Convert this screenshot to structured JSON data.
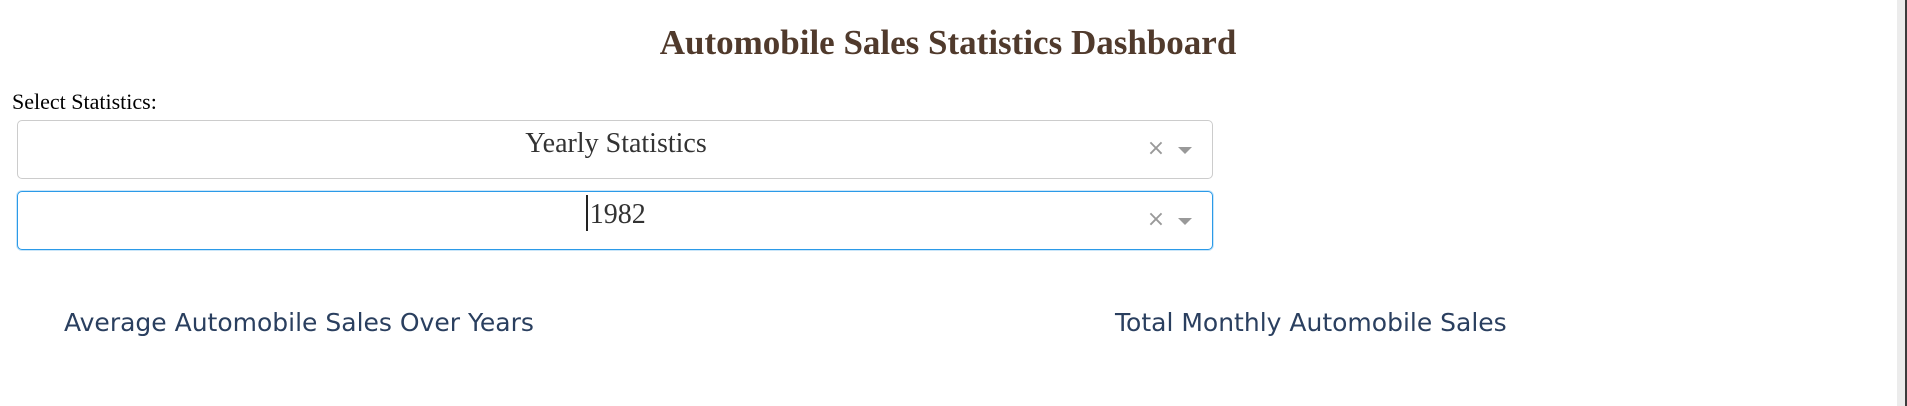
{
  "header": {
    "title": "Automobile Sales Statistics Dashboard"
  },
  "controls": {
    "select_label": "Select Statistics:",
    "statistics_dropdown": {
      "value": "Yearly Statistics",
      "clear_glyph": "×"
    },
    "year_dropdown": {
      "value": "1982",
      "clear_glyph": "×"
    }
  },
  "charts": {
    "left_title": "Average Automobile Sales Over Years",
    "right_title": "Total Monthly Automobile Sales"
  },
  "colors": {
    "title": "#503a2c",
    "chart_title": "#2a3f5f",
    "focus_border": "#2b9ae8"
  }
}
